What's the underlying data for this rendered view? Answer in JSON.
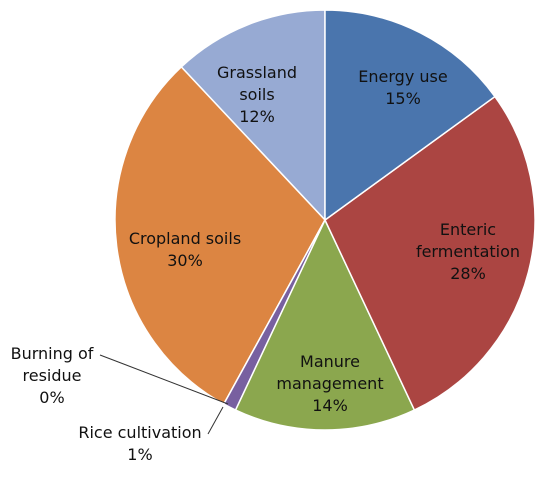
{
  "chart_data": {
    "type": "pie",
    "categories": [
      "Energy use",
      "Enteric fermentation",
      "Manure management",
      "Rice cultivation",
      "Burning of residue",
      "Cropland soils",
      "Grassland soils"
    ],
    "values": [
      15,
      28,
      14,
      1,
      0,
      30,
      12
    ],
    "value_labels": [
      "15%",
      "28%",
      "14%",
      "1%",
      "0%",
      "30%",
      "12%"
    ],
    "colors": [
      "#4a75ad",
      "#ab4542",
      "#8ba74e",
      "#7860a0",
      "#3e9bb5",
      "#dc8542",
      "#97aad3"
    ]
  }
}
